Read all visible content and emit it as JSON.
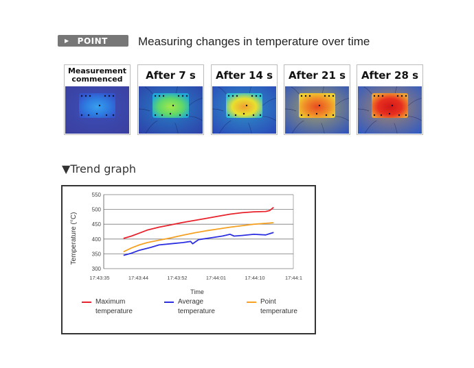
{
  "header": {
    "badge_label": "POINT",
    "title": "Measuring changes in temperature over time"
  },
  "thermal_images": [
    {
      "label": "Measurement commenced",
      "label_line1": "Measurement",
      "label_line2": "commenced",
      "heat_level": 0.0
    },
    {
      "label": "After 7 s",
      "heat_level": 0.3
    },
    {
      "label": "After 14 s",
      "heat_level": 0.55
    },
    {
      "label": "After 21 s",
      "heat_level": 0.78
    },
    {
      "label": "After 28 s",
      "heat_level": 1.0
    }
  ],
  "trend": {
    "title": "Trend graph"
  },
  "colors": {
    "max": "#e8202a",
    "avg": "#2a2ee0",
    "point": "#f5a020",
    "badge": "#777777"
  },
  "chart_data": {
    "type": "line",
    "xlabel": "Time",
    "ylabel": "Temperature (°C)",
    "ylim": [
      300,
      550
    ],
    "yticks": [
      300,
      350,
      400,
      450,
      500,
      550
    ],
    "xticks": [
      "17:43:35",
      "17:43:44",
      "17:43:52",
      "17:44:01",
      "17:44:10",
      "17:44:1"
    ],
    "grid": true,
    "legend_position": "bottom",
    "series": [
      {
        "name": "Maximum temperature",
        "name_line1": "Maximum",
        "name_line2": "temperature",
        "color": "#e8202a",
        "points": [
          [
            5,
            402
          ],
          [
            7,
            410
          ],
          [
            9,
            420
          ],
          [
            11,
            430
          ],
          [
            14,
            440
          ],
          [
            17,
            448
          ],
          [
            20,
            456
          ],
          [
            23,
            463
          ],
          [
            26,
            470
          ],
          [
            29,
            477
          ],
          [
            32,
            484
          ],
          [
            35,
            489
          ],
          [
            38,
            492
          ],
          [
            41,
            493
          ],
          [
            42,
            496
          ],
          [
            43,
            507
          ]
        ]
      },
      {
        "name": "Average temperature",
        "name_line1": "Average",
        "name_line2": "temperature",
        "color": "#2a2ee0",
        "points": [
          [
            5,
            345
          ],
          [
            7,
            352
          ],
          [
            9,
            362
          ],
          [
            12,
            372
          ],
          [
            14,
            380
          ],
          [
            17,
            384
          ],
          [
            20,
            388
          ],
          [
            22,
            392
          ],
          [
            22.5,
            384
          ],
          [
            24,
            398
          ],
          [
            27,
            404
          ],
          [
            30,
            410
          ],
          [
            32,
            416
          ],
          [
            33,
            410
          ],
          [
            35,
            412
          ],
          [
            38,
            416
          ],
          [
            41,
            414
          ],
          [
            42,
            418
          ],
          [
            43,
            422
          ]
        ]
      },
      {
        "name": "Point temperature",
        "name_line1": "Point",
        "name_line2": "temperature",
        "color": "#f5a020",
        "points": [
          [
            5,
            357
          ],
          [
            7,
            370
          ],
          [
            9,
            380
          ],
          [
            11,
            388
          ],
          [
            14,
            396
          ],
          [
            17,
            404
          ],
          [
            20,
            413
          ],
          [
            23,
            421
          ],
          [
            26,
            428
          ],
          [
            29,
            434
          ],
          [
            32,
            440
          ],
          [
            35,
            445
          ],
          [
            38,
            450
          ],
          [
            41,
            453
          ],
          [
            43,
            455
          ]
        ]
      }
    ]
  }
}
